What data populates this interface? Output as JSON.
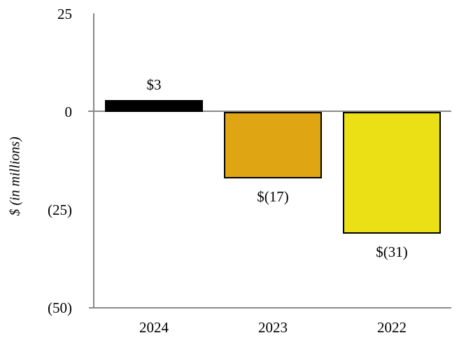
{
  "chart_data": {
    "type": "bar",
    "title": "",
    "xlabel": "",
    "ylabel": "$ (in millions)",
    "categories": [
      "2024",
      "2023",
      "2022"
    ],
    "values": [
      3,
      -17,
      -31
    ],
    "value_labels": [
      "$3",
      "$(17)",
      "$(31)"
    ],
    "bar_colors": [
      "#000000",
      "#e0a512",
      "#eae015"
    ],
    "bar_border_color": "#000000",
    "axis_line_color": "#898989",
    "text_color": "#000000",
    "ylim": [
      -50,
      25
    ],
    "yticks": [
      {
        "value": 25,
        "label": "25"
      },
      {
        "value": 0,
        "label": "0"
      },
      {
        "value": -25,
        "label": "(25)"
      },
      {
        "value": -50,
        "label": "(50)"
      }
    ],
    "grid": false,
    "legend": "none"
  }
}
